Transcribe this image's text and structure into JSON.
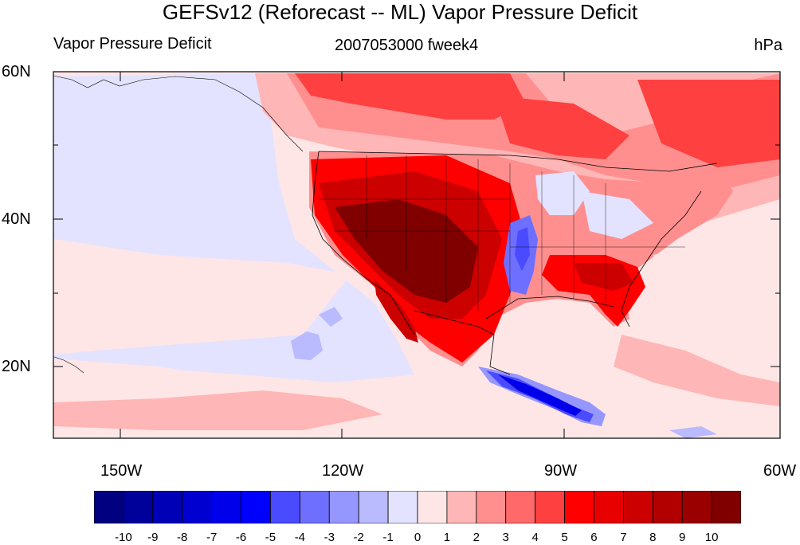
{
  "title": "GEFSv12 (Reforecast -- ML) Vapor Pressure Deficit",
  "left_subtitle": "Vapor Pressure Deficit",
  "center_subtitle": "2007053000 fweek4",
  "units": "hPa",
  "latitude_labels": [
    "60N",
    "40N",
    "20N"
  ],
  "longitude_labels": [
    "150W",
    "120W",
    "90W",
    "60W"
  ],
  "colorbar": {
    "labels": [
      "-10",
      "-9",
      "-8",
      "-7",
      "-6",
      "-5",
      "-4",
      "-3",
      "-2",
      "-1",
      "0",
      "1",
      "2",
      "3",
      "4",
      "5",
      "6",
      "7",
      "8",
      "9",
      "10"
    ],
    "colors": [
      "#000080",
      "#00009b",
      "#0000b6",
      "#0000d1",
      "#0000ea",
      "#0000ff",
      "#4a4aff",
      "#6f6fff",
      "#9696ff",
      "#babaff",
      "#e3e3ff",
      "#ffe6e6",
      "#ffb6b6",
      "#ff8f8f",
      "#ff6969",
      "#ff4040",
      "#ff0000",
      "#e80000",
      "#cd0000",
      "#b20000",
      "#9a0000",
      "#800000"
    ]
  },
  "map_extent": {
    "lon": [
      -160,
      -60
    ],
    "lat": [
      10,
      60
    ]
  }
}
